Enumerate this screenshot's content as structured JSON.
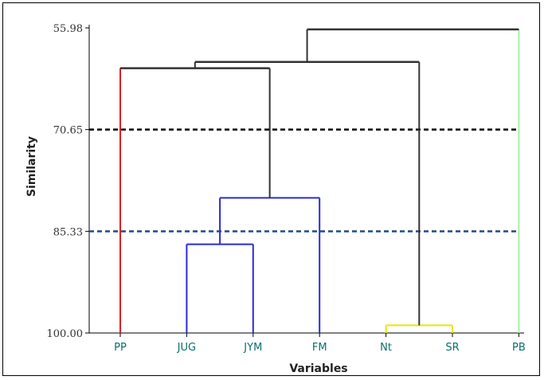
{
  "chart_data": {
    "type": "dendrogram",
    "xlabel": "Variables",
    "ylabel": "Similarity",
    "y_ticks": [
      "55.98",
      "70.65",
      "85.33",
      "100.00"
    ],
    "ylim": [
      55.98,
      100.0
    ],
    "leaves": [
      "PP",
      "JUG",
      "JYM",
      "FM",
      "Nt",
      "SR",
      "PB"
    ],
    "merges": [
      {
        "left": "JUG",
        "right": "JYM",
        "similarity": 87.2,
        "color": "#2b2bdc"
      },
      {
        "left": "JUG-JYM",
        "right": "FM",
        "similarity": 80.5,
        "color": "#2b2bdc"
      },
      {
        "left": "Nt",
        "right": "SR",
        "similarity": 98.9,
        "color": "#e8e800"
      },
      {
        "left": "PP",
        "right": "JUG-JYM-FM",
        "similarity": 61.8,
        "color": "#333333"
      },
      {
        "left": "PP-JUG-JYM-FM",
        "right": "Nt-SR",
        "similarity": 60.9,
        "color": "#333333"
      },
      {
        "left": "PP-JUG-JYM-FM-Nt-SR",
        "right": "PB",
        "similarity": 56.2,
        "color": "#333333"
      }
    ],
    "leaf_colors": {
      "PP": "#e02020",
      "PB": "#a6f0a6"
    },
    "cut_lines": [
      {
        "similarity": 70.65,
        "color": "#000000",
        "style": "dashed"
      },
      {
        "similarity": 85.33,
        "color": "#234a8a",
        "style": "dashed"
      }
    ]
  }
}
